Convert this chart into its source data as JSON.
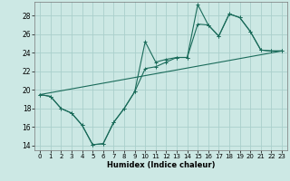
{
  "xlabel": "Humidex (Indice chaleur)",
  "xlim": [
    -0.5,
    23.5
  ],
  "ylim": [
    13.5,
    29.5
  ],
  "xticks": [
    0,
    1,
    2,
    3,
    4,
    5,
    6,
    7,
    8,
    9,
    10,
    11,
    12,
    13,
    14,
    15,
    16,
    17,
    18,
    19,
    20,
    21,
    22,
    23
  ],
  "yticks": [
    14,
    16,
    18,
    20,
    22,
    24,
    26,
    28
  ],
  "background_color": "#cce8e4",
  "grid_color": "#aacfcc",
  "line_color": "#1a6b5a",
  "line1_y": [
    19.5,
    19.3,
    18.0,
    17.5,
    16.2,
    14.1,
    14.2,
    16.5,
    18.0,
    19.8,
    25.2,
    23.0,
    23.3,
    23.5,
    23.5,
    29.2,
    27.0,
    25.8,
    28.2,
    27.8,
    26.3,
    24.3,
    24.2,
    24.2
  ],
  "line2_y": [
    19.5,
    19.3,
    18.0,
    17.5,
    16.2,
    14.1,
    14.2,
    16.5,
    18.0,
    19.8,
    22.3,
    22.5,
    23.0,
    23.5,
    23.5,
    27.1,
    27.0,
    25.8,
    28.2,
    27.8,
    26.3,
    24.3,
    24.2,
    24.2
  ],
  "trend_x": [
    0,
    23
  ],
  "trend_y": [
    19.5,
    24.2
  ],
  "figsize": [
    3.2,
    2.0
  ],
  "dpi": 100
}
